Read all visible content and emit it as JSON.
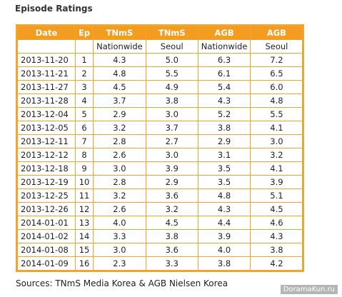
{
  "title": "Episode Ratings",
  "table": {
    "header": [
      "Date",
      "Ep",
      "TNmS",
      "TNmS",
      "AGB",
      "AGB"
    ],
    "subheader": [
      "Nationwide",
      "Seoul",
      "Nationwide",
      "Seoul"
    ],
    "rows": [
      [
        "2013-11-20",
        "1",
        "4.3",
        "5.0",
        "6.3",
        "7.2"
      ],
      [
        "2013-11-21",
        "2",
        "4.8",
        "5.5",
        "6.1",
        "6.5"
      ],
      [
        "2013-11-27",
        "3",
        "4.5",
        "4.9",
        "5.4",
        "6.0"
      ],
      [
        "2013-11-28",
        "4",
        "3.7",
        "3.8",
        "4.3",
        "4.8"
      ],
      [
        "2013-12-04",
        "5",
        "2.9",
        "3.0",
        "5.2",
        "5.5"
      ],
      [
        "2013-12-05",
        "6",
        "3.2",
        "3.7",
        "3.8",
        "4.1"
      ],
      [
        "2013-12-11",
        "7",
        "2.8",
        "2.7",
        "2.9",
        "3.0"
      ],
      [
        "2013-12-12",
        "8",
        "2.6",
        "3.0",
        "3.1",
        "3.2"
      ],
      [
        "2013-12-18",
        "9",
        "3.0",
        "3.9",
        "3.5",
        "4.1"
      ],
      [
        "2013-12-19",
        "10",
        "2.8",
        "2.9",
        "3.5",
        "3.9"
      ],
      [
        "2013-12-25",
        "11",
        "3.2",
        "3.6",
        "4.8",
        "5.1"
      ],
      [
        "2013-12-26",
        "12",
        "2.6",
        "3.2",
        "4.3",
        "4.5"
      ],
      [
        "2014-01-01",
        "13",
        "4.0",
        "4.5",
        "4.4",
        "4.6"
      ],
      [
        "2014-01-02",
        "14",
        "3.3",
        "3.8",
        "3.9",
        "4.3"
      ],
      [
        "2014-01-08",
        "15",
        "3.0",
        "3.6",
        "4.0",
        "3.8"
      ],
      [
        "2014-01-09",
        "16",
        "2.3",
        "3.3",
        "3.8",
        "4.2"
      ]
    ]
  },
  "source": "Sources: TNmS Media Korea & AGB Nielsen Korea",
  "watermark": "DoramaKun.ru"
}
